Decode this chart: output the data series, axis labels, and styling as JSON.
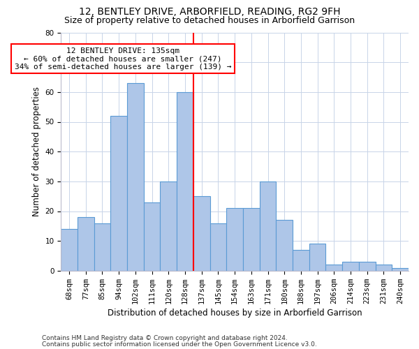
{
  "title": "12, BENTLEY DRIVE, ARBORFIELD, READING, RG2 9FH",
  "subtitle": "Size of property relative to detached houses in Arborfield Garrison",
  "xlabel": "Distribution of detached houses by size in Arborfield Garrison",
  "ylabel": "Number of detached properties",
  "categories": [
    "68sqm",
    "77sqm",
    "85sqm",
    "94sqm",
    "102sqm",
    "111sqm",
    "128sqm",
    "137sqm",
    "145sqm",
    "154sqm",
    "163sqm",
    "171sqm",
    "180sqm",
    "188sqm",
    "197sqm",
    "206sqm",
    "214sqm",
    "223sqm",
    "231sqm",
    "240sqm"
  ],
  "full_categories": [
    "68sqm",
    "77sqm",
    "85sqm",
    "94sqm",
    "102sqm",
    "111sqm",
    "120sqm",
    "128sqm",
    "137sqm",
    "145sqm",
    "154sqm",
    "163sqm",
    "171sqm",
    "180sqm",
    "188sqm",
    "197sqm",
    "206sqm",
    "214sqm",
    "223sqm",
    "231sqm",
    "240sqm"
  ],
  "values": [
    14,
    18,
    16,
    52,
    63,
    23,
    30,
    60,
    25,
    16,
    21,
    21,
    30,
    17,
    7,
    9,
    2,
    3,
    3,
    2,
    1
  ],
  "bar_color": "#aec6e8",
  "bar_edge_color": "#5b9bd5",
  "vline_x": 8.0,
  "annotation_title": "12 BENTLEY DRIVE: 135sqm",
  "annotation_line1": "← 60% of detached houses are smaller (247)",
  "annotation_line2": "34% of semi-detached houses are larger (139) →",
  "annotation_box_color": "white",
  "annotation_box_edge": "red",
  "vline_color": "red",
  "ylim": [
    0,
    80
  ],
  "yticks": [
    0,
    10,
    20,
    30,
    40,
    50,
    60,
    70,
    80
  ],
  "grid_color": "#c8d4e8",
  "background_color": "white",
  "footer1": "Contains HM Land Registry data © Crown copyright and database right 2024.",
  "footer2": "Contains public sector information licensed under the Open Government Licence v3.0.",
  "title_fontsize": 10,
  "subtitle_fontsize": 9,
  "axis_label_fontsize": 8.5,
  "tick_fontsize": 7.5,
  "footer_fontsize": 6.5
}
